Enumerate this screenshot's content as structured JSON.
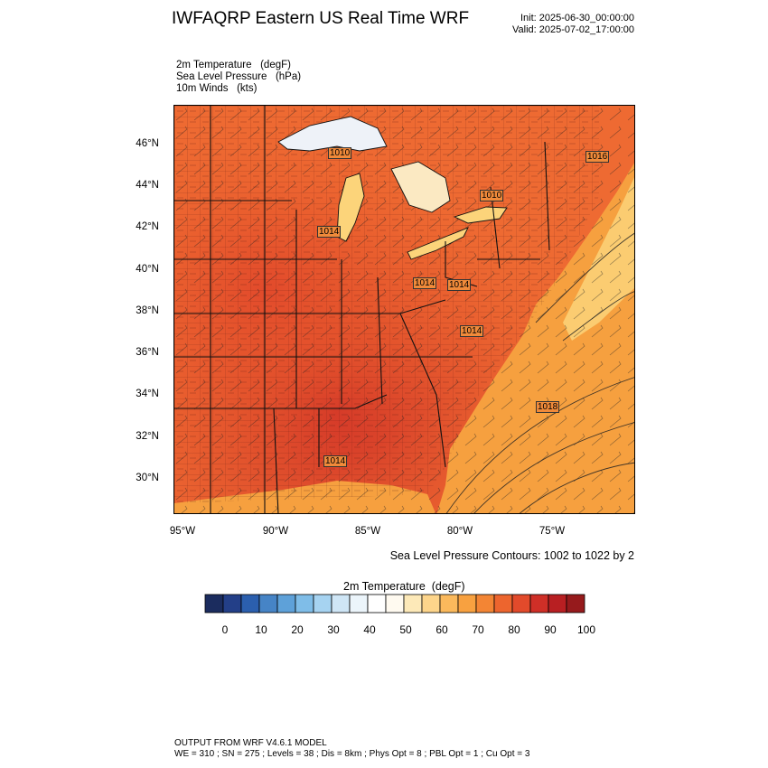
{
  "header": {
    "title": "IWFAQRP Eastern US Real Time WRF",
    "init": "Init: 2025-06-30_00:00:00",
    "valid": "Valid: 2025-07-02_17:00:00"
  },
  "fields": [
    "2m Temperature   (degF)",
    "Sea Level Pressure   (hPa)",
    "10m Winds   (kts)"
  ],
  "map": {
    "lat_labels": [
      "46°N",
      "44°N",
      "42°N",
      "40°N",
      "38°N",
      "36°N",
      "34°N",
      "32°N",
      "30°N"
    ],
    "lon_labels": [
      "95°W",
      "90°W",
      "85°W",
      "80°W",
      "75°W"
    ],
    "pressure_labels": [
      "1010",
      "1016",
      "1010",
      "1014",
      "1014",
      "1014",
      "1014",
      "1018",
      "1014"
    ],
    "colors": {
      "hot": "#d9352b",
      "warm": "#ee6a32",
      "mild": "#f6a03f",
      "cool": "#fcd47a",
      "lake": "#eef2f8",
      "border": "#111111"
    }
  },
  "slp_note": "Sea Level Pressure Contours: 1002 to 1022 by 2",
  "colorbar": {
    "title": "2m Temperature  (degF)",
    "tick_labels": [
      "0",
      "10",
      "20",
      "30",
      "40",
      "50",
      "60",
      "70",
      "80",
      "90",
      "100"
    ],
    "colors": [
      "#1b2c5e",
      "#233f88",
      "#2b5fae",
      "#4684c6",
      "#5ea1d9",
      "#7fbde8",
      "#a6d3f1",
      "#cfe6f6",
      "#ecf5fb",
      "#ffffff",
      "#fffaf0",
      "#fde9b8",
      "#fdd58b",
      "#fbb95c",
      "#f8a140",
      "#f38534",
      "#ed652e",
      "#e24a2b",
      "#cf2f27",
      "#b81f22",
      "#961a1c"
    ]
  },
  "footer": {
    "line1": "OUTPUT FROM WRF V4.6.1 MODEL",
    "line2": "WE = 310 ; SN = 275 ; Levels = 38 ; Dis = 8km ; Phys Opt = 8 ; PBL Opt = 1 ; Cu Opt = 3"
  }
}
